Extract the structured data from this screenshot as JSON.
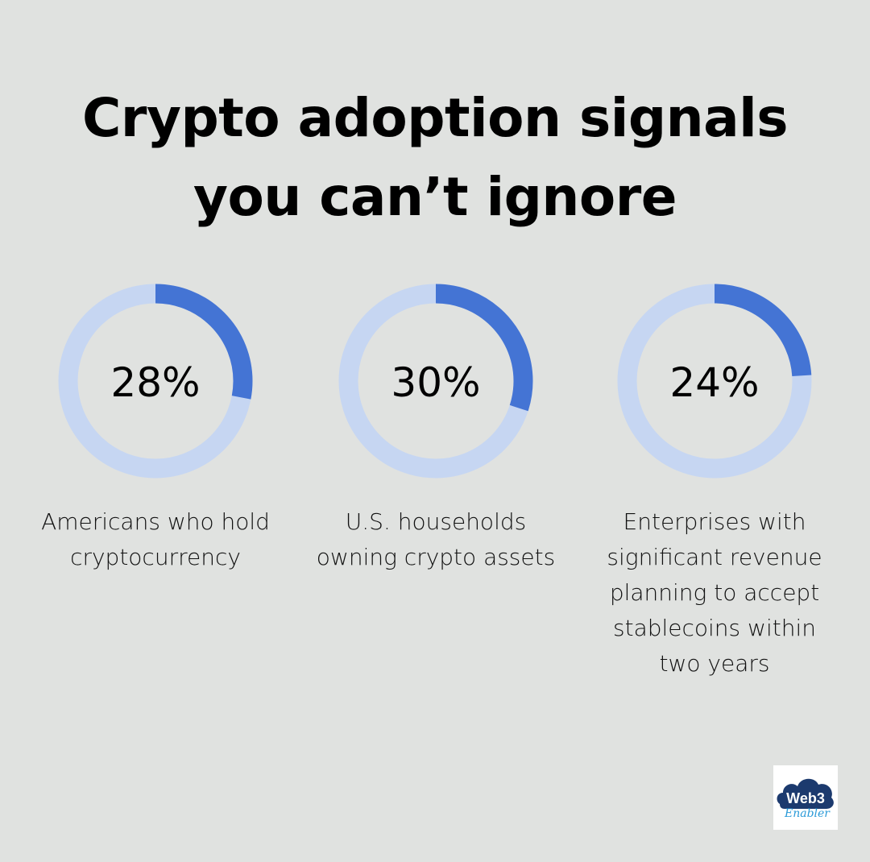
{
  "title_lines": [
    "Crypto adoption signals",
    "you can’t ignore"
  ],
  "colors": {
    "background": "#e0e2e0",
    "accent": "#4474d4",
    "track": "#c6d6f2"
  },
  "chart_data": {
    "type": "donut",
    "max": 100,
    "items": [
      {
        "value": 28,
        "value_label": "28%",
        "label": "Americans who hold cryptocurrency"
      },
      {
        "value": 30,
        "value_label": "30%",
        "label": "U.S. households owning crypto assets"
      },
      {
        "value": 24,
        "value_label": "24%",
        "label": "Enterprises with significant revenue planning to accept stablecoins within two years"
      }
    ]
  },
  "logo": {
    "text": "Web3 Enabler"
  }
}
